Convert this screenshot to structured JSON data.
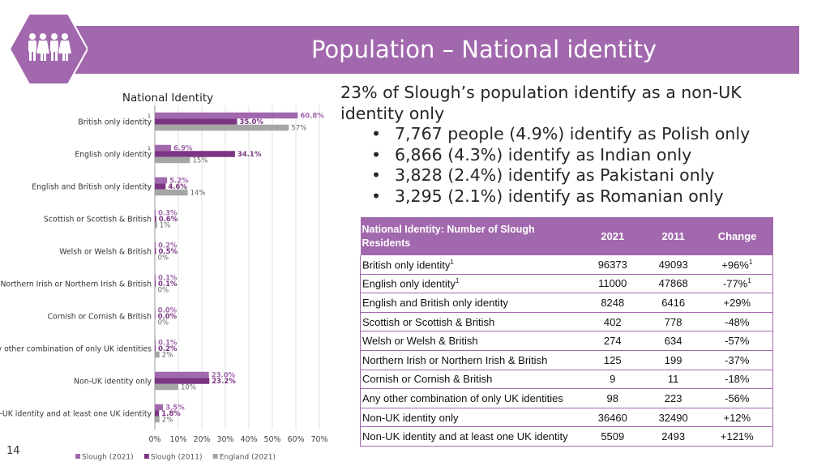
{
  "header": {
    "title": "Population – National identity"
  },
  "slide_number": "14",
  "colors": {
    "accent": "#a268ad",
    "slough_2021": "#a268ad",
    "slough_2011": "#7b3583",
    "england_2021": "#a6a6a6"
  },
  "icons": {
    "header_icon": "people-group-icon"
  },
  "bullets": {
    "lead": "23% of Slough’s population identify as a non-UK identity only",
    "items": [
      "7,767 people (4.9%) identify as Polish only",
      "6,866 (4.3%) identify as Indian only",
      "3,828 (2.4%) identify as Pakistani only",
      "3,295 (2.1%) identify as Romanian only"
    ]
  },
  "table": {
    "headers": [
      "National Identity: Number of Slough Residents",
      "2021",
      "2011",
      "Change"
    ],
    "rows": [
      {
        "label": "British only identity",
        "sup": "1",
        "y2021": "96373",
        "y2011": "49093",
        "change": "+96%",
        "change_sup": "1"
      },
      {
        "label": "English only identity",
        "sup": "1",
        "y2021": "11000",
        "y2011": "47868",
        "change": "-77%",
        "change_sup": "1"
      },
      {
        "label": "English and British only identity",
        "y2021": "8248",
        "y2011": "6416",
        "change": "+29%"
      },
      {
        "label": "Scottish or Scottish & British",
        "y2021": "402",
        "y2011": "778",
        "change": "-48%"
      },
      {
        "label": "Welsh or Welsh & British",
        "y2021": "274",
        "y2011": "634",
        "change": "-57%"
      },
      {
        "label": "Northern Irish or Northern Irish & British",
        "y2021": "125",
        "y2011": "199",
        "change": "-37%"
      },
      {
        "label": "Cornish or Cornish & British",
        "y2021": "9",
        "y2011": "11",
        "change": "-18%"
      },
      {
        "label": "Any other combination of only UK identities",
        "y2021": "98",
        "y2011": "223",
        "change": "-56%"
      },
      {
        "label": "Non-UK identity only",
        "y2021": "36460",
        "y2011": "32490",
        "change": "+12%"
      },
      {
        "label": "Non-UK identity and at least one UK identity",
        "y2021": "5509",
        "y2011": "2493",
        "change": "+121%"
      }
    ]
  },
  "chart_data": {
    "type": "bar",
    "orientation": "horizontal",
    "title": "National Identity",
    "categories": [
      "British only identity",
      "English only identity",
      "English and British only identity",
      "Scottish or Scottish & British",
      "Welsh or Welsh & British",
      "Northern Irish or Northern Irish & British",
      "Cornish or Cornish & British",
      "Any other combination of only UK identities",
      "Non-UK identity only",
      "Non-UK identity and at least one UK identity"
    ],
    "category_marks": [
      "1",
      "1",
      "",
      "",
      "",
      "",
      "",
      "",
      "",
      ""
    ],
    "series": [
      {
        "name": "Slough (2021)",
        "color": "#a268ad",
        "values": [
          60.8,
          6.9,
          5.2,
          0.3,
          0.2,
          0.1,
          0.0,
          0.1,
          23.0,
          3.5
        ],
        "labels": [
          "60.8%",
          "6.9%",
          "5.2%",
          "0.3%",
          "0.2%",
          "0.1%",
          "0.0%",
          "0.1%",
          "23.0%",
          "3.5%"
        ]
      },
      {
        "name": "Slough (2011)",
        "color": "#7b3583",
        "values": [
          35.0,
          34.1,
          4.6,
          0.6,
          0.5,
          0.1,
          0.0,
          0.2,
          23.2,
          1.8
        ],
        "labels": [
          "35.0%",
          "34.1%",
          "4.6%",
          "0.6%",
          "0.5%",
          "0.1%",
          "0.0%",
          "0.2%",
          "23.2%",
          "1.8%"
        ]
      },
      {
        "name": "England (2021)",
        "color": "#a6a6a6",
        "values": [
          57,
          15,
          14,
          1,
          0,
          0,
          0,
          2,
          10,
          2
        ],
        "labels": [
          "57%",
          "15%",
          "14%",
          "1%",
          "0%",
          "0%",
          "0%",
          "2%",
          "10%",
          "2%"
        ]
      }
    ],
    "xlim": [
      0,
      70
    ],
    "xticks": [
      "0%",
      "10%",
      "20%",
      "30%",
      "40%",
      "50%",
      "60%",
      "70%"
    ],
    "legend_position": "bottom",
    "grid": true
  }
}
